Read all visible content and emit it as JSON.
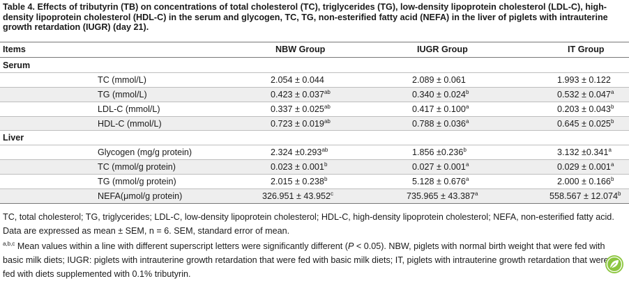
{
  "caption": "Table 4.  Effects of tributyrin (TB) on concentrations of total cholesterol (TC), triglycerides (TG), low-density lipoprotein cholesterol (LDL-C), high-density lipoprotein cholesterol (HDL-C) in the serum and glycogen, TC, TG, non-esterified fatty acid (NEFA) in the liver of piglets with intrauterine growth retardation (IUGR) (day 21).",
  "headers": {
    "items": "Items",
    "nbw": "NBW Group",
    "iugr": "IUGR Group",
    "it": "IT Group"
  },
  "sections": {
    "serum": "Serum",
    "liver": "Liver"
  },
  "rows": [
    {
      "label": "TC (mmol/L)",
      "nbw": "2.054 ± 0.044",
      "nbw_sup": "",
      "iugr": "2.089 ± 0.061",
      "iugr_sup": "",
      "it": "1.993 ± 0.122",
      "it_sup": ""
    },
    {
      "label": "TG (mmol/L)",
      "nbw": "0.423 ± 0.037",
      "nbw_sup": "ab",
      "iugr": "0.340 ± 0.024",
      "iugr_sup": "b",
      "it": "0.532 ± 0.047",
      "it_sup": "a"
    },
    {
      "label": "LDL-C (mmol/L)",
      "nbw": "0.337 ± 0.025",
      "nbw_sup": "ab",
      "iugr": "0.417 ± 0.100",
      "iugr_sup": "a",
      "it": "0.203 ± 0.043",
      "it_sup": "b"
    },
    {
      "label": "HDL-C (mmol/L)",
      "nbw": "0.723 ± 0.019",
      "nbw_sup": "ab",
      "iugr": "0.788 ± 0.036",
      "iugr_sup": "a",
      "it": "0.645 ± 0.025",
      "it_sup": "b"
    },
    {
      "label": "Glycogen (mg/g protein)",
      "nbw": "2.324 ±0.293",
      "nbw_sup": "ab",
      "iugr": "1.856 ±0.236",
      "iugr_sup": "b",
      "it": "3.132 ±0.341",
      "it_sup": "a"
    },
    {
      "label": "TC (mmol/g protein)",
      "nbw": "0.023 ± 0.001",
      "nbw_sup": "b",
      "iugr": "0.027 ± 0.001",
      "iugr_sup": "a",
      "it": "0.029 ± 0.001",
      "it_sup": "a"
    },
    {
      "label": "TG (mmol/g protein)",
      "nbw": "2.015 ± 0.238",
      "nbw_sup": "b",
      "iugr": "5.128 ± 0.676",
      "iugr_sup": "a",
      "it": "2.000 ± 0.166",
      "it_sup": "b"
    },
    {
      "label": "NEFA(μmol/g protein)",
      "nbw": "326.951 ± 43.952",
      "nbw_sup": "c",
      "iugr": "735.965 ± 43.387",
      "iugr_sup": "a",
      "it": "558.567 ± 12.074",
      "it_sup": "b"
    }
  ],
  "footnotes": {
    "abbrev": "TC, total cholesterol; TG, triglycerides; LDL-C, low-density lipoprotein cholesterol; HDL-C, high-density lipoprotein cholesterol; NEFA, non-esterified fatty acid. Data are expressed as mean ± SEM, n = 6. SEM, standard error of mean.",
    "sig_sup": "a,b,c",
    "sig_text_1": " Mean values within a line with different superscript letters were significantly different (",
    "sig_p": "P",
    "sig_text_2": " < 0.05). NBW, piglets with normal birth weight that were fed with basic milk diets; IUGR: piglets with intrauterine growth retardation that were fed with basic milk diets; IT, piglets with intrauterine growth retardation that were fed with diets supplemented with 0.1% tributyrin."
  }
}
